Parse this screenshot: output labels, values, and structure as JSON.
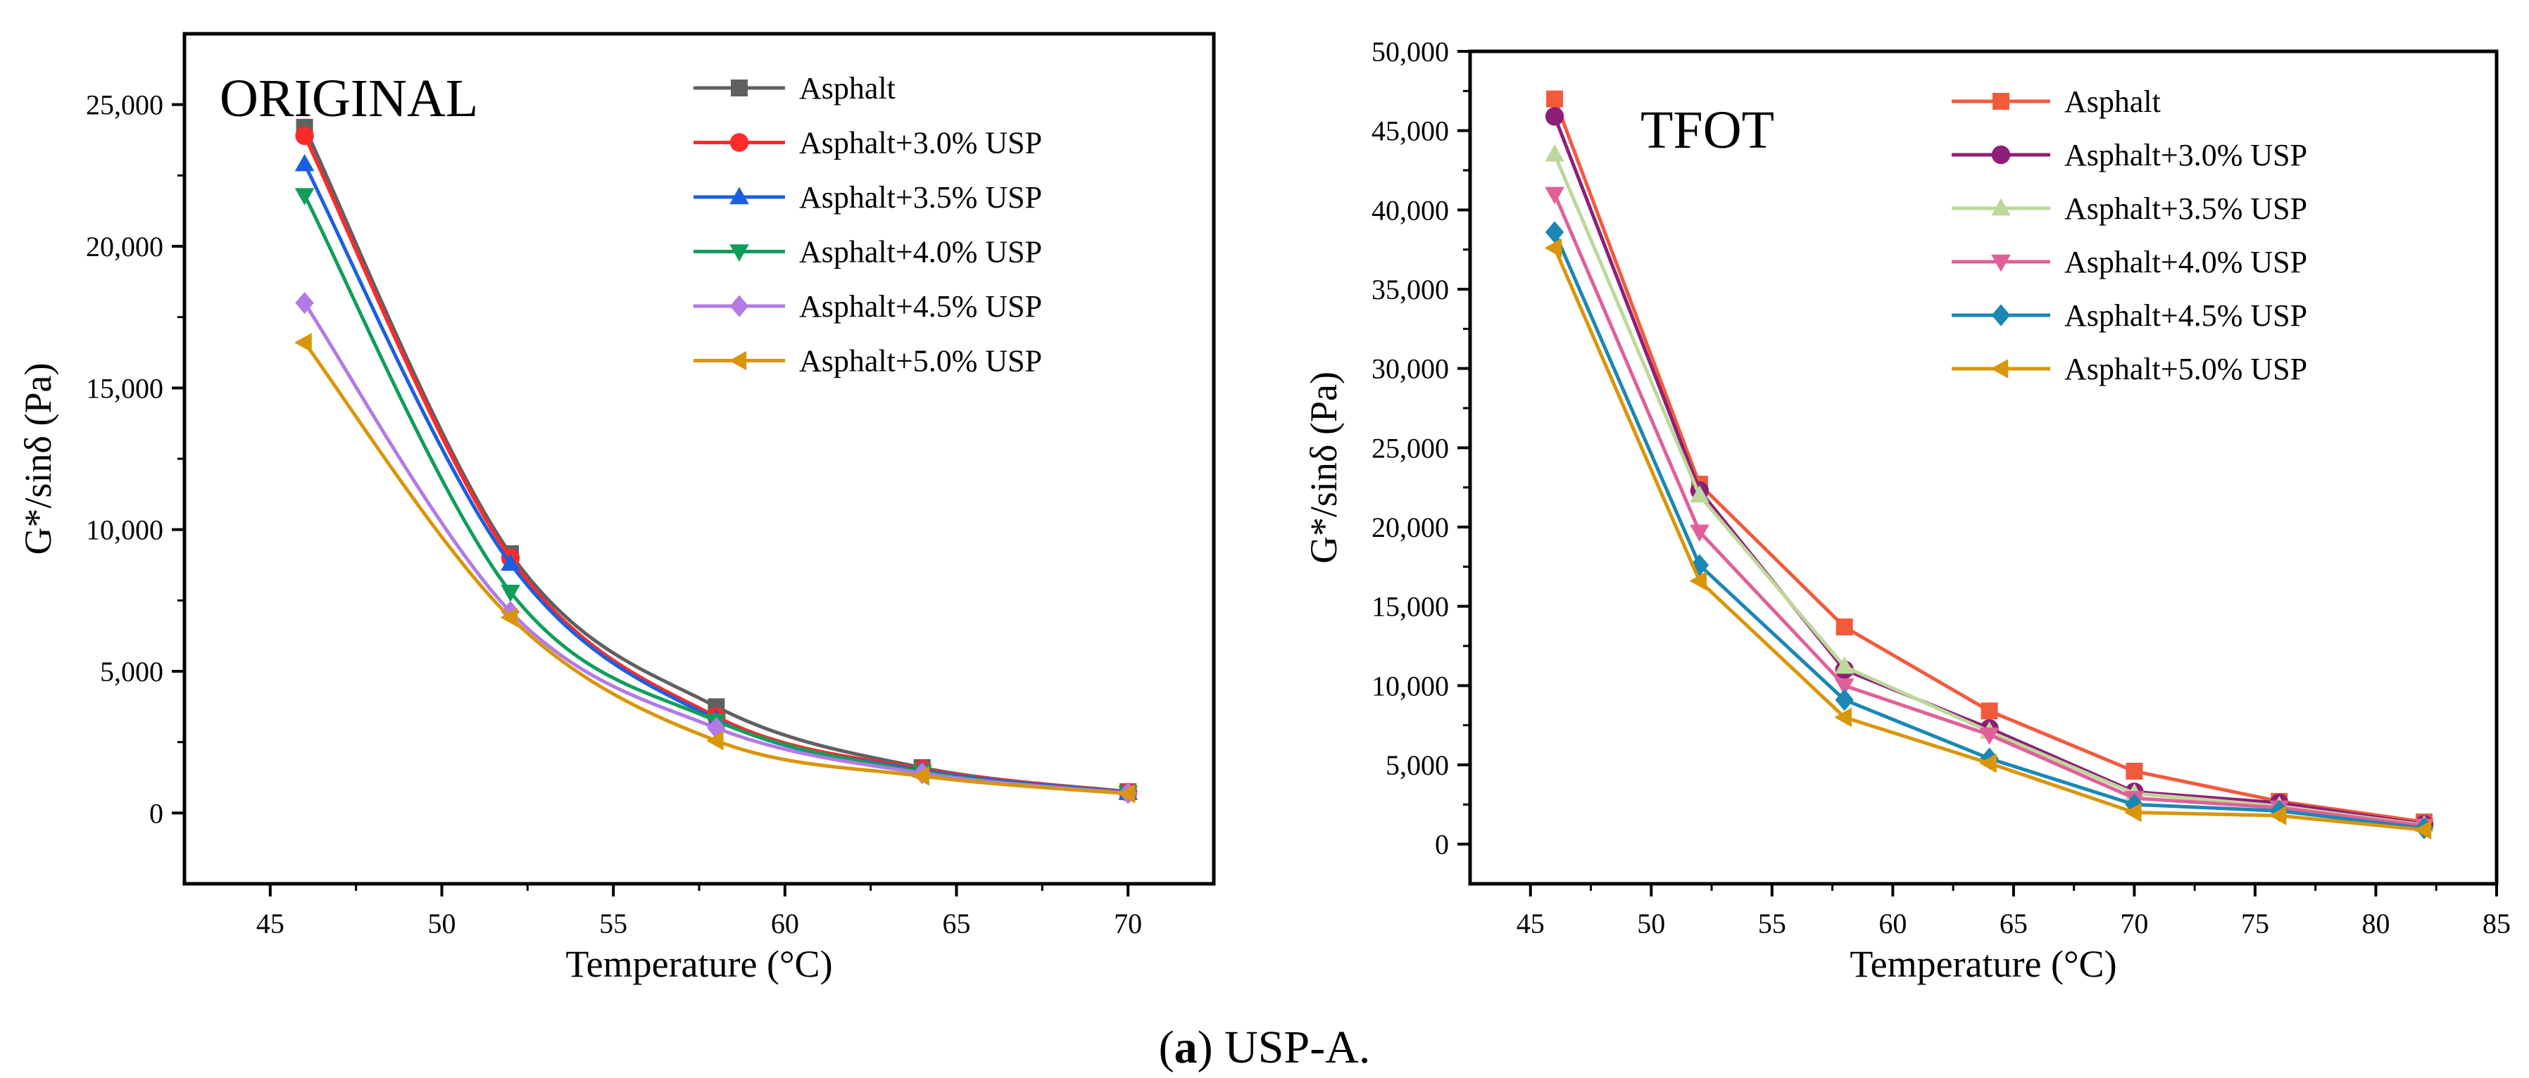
{
  "figure_caption": {
    "letter": "a",
    "open_paren": "(",
    "rest": ") USP-A."
  },
  "chart_data": [
    {
      "type": "line",
      "title": "ORIGINAL",
      "xlabel": "Temperature (°C)",
      "ylabel": "G*/sinδ (Pa)",
      "xlim": [
        42.5,
        72.5
      ],
      "ylim": [
        -2500,
        27500
      ],
      "xticks": [
        45,
        50,
        55,
        60,
        65,
        70
      ],
      "xtick_labels": [
        "45",
        "50",
        "55",
        "60",
        "65",
        "70"
      ],
      "yticks": [
        0,
        5000,
        10000,
        15000,
        20000,
        25000
      ],
      "ytick_labels": [
        "0",
        "5,000",
        "10,000",
        "15,000",
        "20,000",
        "25,000"
      ],
      "legend_position": "top-right",
      "x": [
        46,
        52,
        58,
        64,
        70
      ],
      "series": [
        {
          "name": "Asphalt",
          "color": "#606060",
          "marker": "square",
          "values": [
            24200,
            9150,
            3750,
            1600,
            750
          ]
        },
        {
          "name": "Asphalt+3.0% USP",
          "color": "#ff2a2a",
          "marker": "circle",
          "values": [
            23900,
            9000,
            3400,
            1550,
            730
          ]
        },
        {
          "name": "Asphalt+3.5% USP",
          "color": "#1a5fe0",
          "marker": "triangle-up",
          "values": [
            22900,
            8800,
            3300,
            1500,
            720
          ]
        },
        {
          "name": "Asphalt+4.0% USP",
          "color": "#0f9e5a",
          "marker": "triangle-down",
          "values": [
            21800,
            7800,
            3250,
            1450,
            700
          ]
        },
        {
          "name": "Asphalt+4.5% USP",
          "color": "#b27ae6",
          "marker": "diamond",
          "values": [
            18000,
            7100,
            3000,
            1400,
            700
          ]
        },
        {
          "name": "Asphalt+5.0% USP",
          "color": "#d9960a",
          "marker": "triangle-left",
          "values": [
            16600,
            6900,
            2550,
            1300,
            680
          ]
        }
      ]
    },
    {
      "type": "line",
      "title": "TFOT",
      "xlabel": "Temperature (°C)",
      "ylabel": "G*/sinδ (Pa)",
      "xlim": [
        42.5,
        85
      ],
      "ylim": [
        -2500,
        50000
      ],
      "xticks": [
        45,
        50,
        55,
        60,
        65,
        70,
        75,
        80,
        85
      ],
      "xtick_labels": [
        "45",
        "50",
        "55",
        "60",
        "65",
        "70",
        "75",
        "80",
        "85"
      ],
      "yticks": [
        0,
        5000,
        10000,
        15000,
        20000,
        25000,
        30000,
        35000,
        40000,
        45000,
        50000
      ],
      "ytick_labels": [
        "0",
        "5,000",
        "10,000",
        "15,000",
        "20,000",
        "25,000",
        "30,000",
        "35,000",
        "40,000",
        "45,000",
        "50,000"
      ],
      "legend_position": "top-right",
      "x": [
        46,
        52,
        58,
        64,
        70,
        76,
        82
      ],
      "series": [
        {
          "name": "Asphalt",
          "color": "#f25a3c",
          "marker": "square",
          "values": [
            47000,
            22700,
            13700,
            8400,
            4600,
            2700,
            1400
          ]
        },
        {
          "name": "Asphalt+3.0% USP",
          "color": "#8e1f78",
          "marker": "circle",
          "values": [
            45900,
            22300,
            11000,
            7300,
            3300,
            2600,
            1250
          ]
        },
        {
          "name": "Asphalt+3.5% USP",
          "color": "#bcd89a",
          "marker": "triangle-up",
          "values": [
            43500,
            22000,
            11200,
            7100,
            3200,
            2400,
            1200
          ]
        },
        {
          "name": "Asphalt+4.0% USP",
          "color": "#e0609a",
          "marker": "triangle-down",
          "values": [
            41000,
            19700,
            10000,
            6900,
            2900,
            2300,
            1150
          ]
        },
        {
          "name": "Asphalt+4.5% USP",
          "color": "#1a87b5",
          "marker": "diamond",
          "values": [
            38600,
            17600,
            9100,
            5400,
            2500,
            2100,
            1000
          ]
        },
        {
          "name": "Asphalt+5.0% USP",
          "color": "#d9960a",
          "marker": "triangle-left",
          "values": [
            37600,
            16600,
            8000,
            5100,
            2000,
            1800,
            900
          ]
        }
      ]
    }
  ]
}
